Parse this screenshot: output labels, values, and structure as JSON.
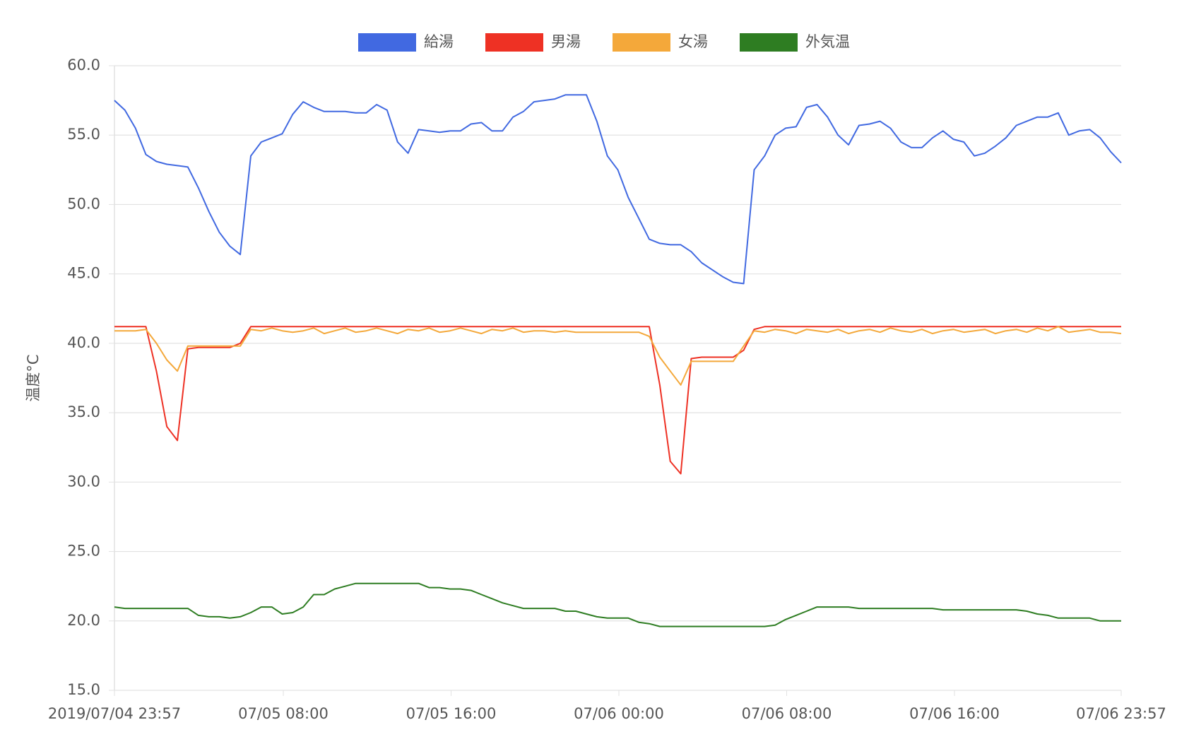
{
  "chart_data": {
    "type": "line",
    "y_label": "温度°C",
    "x": [
      "2019/07/04 23:57",
      "2019/07/05 00:27",
      "2019/07/05 00:57",
      "2019/07/05 01:27",
      "2019/07/05 01:57",
      "2019/07/05 02:27",
      "2019/07/05 02:57",
      "2019/07/05 03:27",
      "2019/07/05 03:57",
      "2019/07/05 04:27",
      "2019/07/05 04:57",
      "2019/07/05 05:27",
      "2019/07/05 05:57",
      "2019/07/05 06:27",
      "2019/07/05 06:57",
      "2019/07/05 07:27",
      "2019/07/05 07:57",
      "2019/07/05 08:27",
      "2019/07/05 08:57",
      "2019/07/05 09:27",
      "2019/07/05 09:57",
      "2019/07/05 10:27",
      "2019/07/05 10:57",
      "2019/07/05 11:27",
      "2019/07/05 11:57",
      "2019/07/05 12:27",
      "2019/07/05 12:57",
      "2019/07/05 13:27",
      "2019/07/05 13:57",
      "2019/07/05 14:27",
      "2019/07/05 14:57",
      "2019/07/05 15:27",
      "2019/07/05 15:57",
      "2019/07/05 16:27",
      "2019/07/05 16:57",
      "2019/07/05 17:27",
      "2019/07/05 17:57",
      "2019/07/05 18:27",
      "2019/07/05 18:57",
      "2019/07/05 19:27",
      "2019/07/05 19:57",
      "2019/07/05 20:27",
      "2019/07/05 20:57",
      "2019/07/05 21:27",
      "2019/07/05 21:57",
      "2019/07/05 22:27",
      "2019/07/05 22:57",
      "2019/07/05 23:27",
      "2019/07/05 23:57",
      "2019/07/06 00:27",
      "2019/07/06 00:57",
      "2019/07/06 01:27",
      "2019/07/06 01:57",
      "2019/07/06 02:27",
      "2019/07/06 02:57",
      "2019/07/06 03:27",
      "2019/07/06 03:57",
      "2019/07/06 04:27",
      "2019/07/06 04:57",
      "2019/07/06 05:27",
      "2019/07/06 05:57",
      "2019/07/06 06:27",
      "2019/07/06 06:57",
      "2019/07/06 07:27",
      "2019/07/06 07:57",
      "2019/07/06 08:27",
      "2019/07/06 08:57",
      "2019/07/06 09:27",
      "2019/07/06 09:57",
      "2019/07/06 10:27",
      "2019/07/06 10:57",
      "2019/07/06 11:27",
      "2019/07/06 11:57",
      "2019/07/06 12:27",
      "2019/07/06 12:57",
      "2019/07/06 13:27",
      "2019/07/06 13:57",
      "2019/07/06 14:27",
      "2019/07/06 14:57",
      "2019/07/06 15:27",
      "2019/07/06 15:57",
      "2019/07/06 16:27",
      "2019/07/06 16:57",
      "2019/07/06 17:27",
      "2019/07/06 17:57",
      "2019/07/06 18:27",
      "2019/07/06 18:57",
      "2019/07/06 19:27",
      "2019/07/06 19:57",
      "2019/07/06 20:27",
      "2019/07/06 20:57",
      "2019/07/06 21:27",
      "2019/07/06 21:57",
      "2019/07/06 22:27",
      "2019/07/06 22:57",
      "2019/07/06 23:27",
      "2019/07/06 23:57"
    ],
    "series": [
      {
        "name": "給湯",
        "color": "#4169e1",
        "values": [
          57.5,
          56.8,
          55.5,
          53.6,
          53.1,
          52.9,
          52.8,
          52.7,
          51.2,
          49.5,
          48.0,
          47.0,
          46.4,
          53.5,
          54.5,
          54.8,
          55.1,
          56.5,
          57.4,
          57.0,
          56.7,
          56.7,
          56.7,
          56.6,
          56.6,
          57.2,
          56.8,
          54.5,
          53.7,
          55.4,
          55.3,
          55.2,
          55.3,
          55.3,
          55.8,
          55.9,
          55.3,
          55.3,
          56.3,
          56.7,
          57.4,
          57.5,
          57.6,
          57.9,
          57.9,
          57.9,
          56.0,
          53.5,
          52.5,
          50.5,
          49.0,
          47.5,
          47.2,
          47.1,
          47.1,
          46.6,
          45.8,
          45.3,
          44.8,
          44.4,
          44.3,
          52.5,
          53.5,
          55.0,
          55.5,
          55.6,
          57.0,
          57.2,
          56.3,
          55.0,
          54.3,
          55.7,
          55.8,
          56.0,
          55.5,
          54.5,
          54.1,
          54.1,
          54.8,
          55.3,
          54.7,
          54.5,
          53.5,
          53.7,
          54.2,
          54.8,
          55.7,
          56.0,
          56.3,
          56.3,
          56.6,
          55.0,
          55.3,
          55.4,
          54.8,
          53.8,
          53.0
        ]
      },
      {
        "name": "男湯",
        "color": "#ee3124",
        "values": [
          41.2,
          41.2,
          41.2,
          41.2,
          38.0,
          34.0,
          33.0,
          39.6,
          39.7,
          39.7,
          39.7,
          39.7,
          40.0,
          41.2,
          41.2,
          41.2,
          41.2,
          41.2,
          41.2,
          41.2,
          41.2,
          41.2,
          41.2,
          41.2,
          41.2,
          41.2,
          41.2,
          41.2,
          41.2,
          41.2,
          41.2,
          41.2,
          41.2,
          41.2,
          41.2,
          41.2,
          41.2,
          41.2,
          41.2,
          41.2,
          41.2,
          41.2,
          41.2,
          41.2,
          41.2,
          41.2,
          41.2,
          41.2,
          41.2,
          41.2,
          41.2,
          41.2,
          37.0,
          31.5,
          30.6,
          38.9,
          39.0,
          39.0,
          39.0,
          39.0,
          39.5,
          41.0,
          41.2,
          41.2,
          41.2,
          41.2,
          41.2,
          41.2,
          41.2,
          41.2,
          41.2,
          41.2,
          41.2,
          41.2,
          41.2,
          41.2,
          41.2,
          41.2,
          41.2,
          41.2,
          41.2,
          41.2,
          41.2,
          41.2,
          41.2,
          41.2,
          41.2,
          41.2,
          41.2,
          41.2,
          41.2,
          41.2,
          41.2,
          41.2,
          41.2,
          41.2,
          41.2
        ]
      },
      {
        "name": "女湯",
        "color": "#f4a83a",
        "values": [
          40.9,
          40.9,
          40.9,
          41.0,
          40.0,
          38.8,
          38.0,
          39.8,
          39.8,
          39.8,
          39.8,
          39.8,
          39.8,
          41.0,
          40.9,
          41.1,
          40.9,
          40.8,
          40.9,
          41.1,
          40.7,
          40.9,
          41.1,
          40.8,
          40.9,
          41.1,
          40.9,
          40.7,
          41.0,
          40.9,
          41.1,
          40.8,
          40.9,
          41.1,
          40.9,
          40.7,
          41.0,
          40.9,
          41.1,
          40.8,
          40.9,
          40.9,
          40.8,
          40.9,
          40.8,
          40.8,
          40.8,
          40.8,
          40.8,
          40.8,
          40.8,
          40.5,
          39.0,
          38.0,
          37.0,
          38.7,
          38.7,
          38.7,
          38.7,
          38.7,
          39.8,
          40.9,
          40.8,
          41.0,
          40.9,
          40.7,
          41.0,
          40.9,
          40.8,
          41.0,
          40.7,
          40.9,
          41.0,
          40.8,
          41.1,
          40.9,
          40.8,
          41.0,
          40.7,
          40.9,
          41.0,
          40.8,
          40.9,
          41.0,
          40.7,
          40.9,
          41.0,
          40.8,
          41.1,
          40.9,
          41.2,
          40.8,
          40.9,
          41.0,
          40.8,
          40.8,
          40.7
        ]
      },
      {
        "name": "外気温",
        "color": "#2e7d22",
        "values": [
          21.0,
          20.9,
          20.9,
          20.9,
          20.9,
          20.9,
          20.9,
          20.9,
          20.4,
          20.3,
          20.3,
          20.2,
          20.3,
          20.6,
          21.0,
          21.0,
          20.5,
          20.6,
          21.0,
          21.9,
          21.9,
          22.3,
          22.5,
          22.7,
          22.7,
          22.7,
          22.7,
          22.7,
          22.7,
          22.7,
          22.4,
          22.4,
          22.3,
          22.3,
          22.2,
          21.9,
          21.6,
          21.3,
          21.1,
          20.9,
          20.9,
          20.9,
          20.9,
          20.7,
          20.7,
          20.5,
          20.3,
          20.2,
          20.2,
          20.2,
          19.9,
          19.8,
          19.6,
          19.6,
          19.6,
          19.6,
          19.6,
          19.6,
          19.6,
          19.6,
          19.6,
          19.6,
          19.6,
          19.7,
          20.1,
          20.4,
          20.7,
          21.0,
          21.0,
          21.0,
          21.0,
          20.9,
          20.9,
          20.9,
          20.9,
          20.9,
          20.9,
          20.9,
          20.9,
          20.8,
          20.8,
          20.8,
          20.8,
          20.8,
          20.8,
          20.8,
          20.8,
          20.7,
          20.5,
          20.4,
          20.2,
          20.2,
          20.2,
          20.2,
          20.0,
          20.0,
          20.0
        ]
      }
    ],
    "xlim": [
      "2019/07/04 23:57",
      "2019/07/06 23:57"
    ],
    "xticks": [
      {
        "value": "2019/07/04 23:57",
        "label": "2019/07/04 23:57"
      },
      {
        "value": "2019/07/05 08:00",
        "label": "07/05 08:00"
      },
      {
        "value": "2019/07/05 16:00",
        "label": "07/05 16:00"
      },
      {
        "value": "2019/07/06 00:00",
        "label": "07/06 00:00"
      },
      {
        "value": "2019/07/06 08:00",
        "label": "07/06 08:00"
      },
      {
        "value": "2019/07/06 16:00",
        "label": "07/06 16:00"
      },
      {
        "value": "2019/07/06 23:57",
        "label": "07/06 23:57"
      }
    ],
    "ylim": [
      15,
      60
    ],
    "yticks": [
      {
        "value": 15,
        "label": "15.0"
      },
      {
        "value": 20,
        "label": "20.0"
      },
      {
        "value": 25,
        "label": "25.0"
      },
      {
        "value": 30,
        "label": "30.0"
      },
      {
        "value": 35,
        "label": "35.0"
      },
      {
        "value": 40,
        "label": "40.0"
      },
      {
        "value": 45,
        "label": "45.0"
      },
      {
        "value": 50,
        "label": "50.0"
      },
      {
        "value": 55,
        "label": "55.0"
      },
      {
        "value": 60,
        "label": "60.0"
      }
    ],
    "grid": true,
    "legend": "top"
  }
}
